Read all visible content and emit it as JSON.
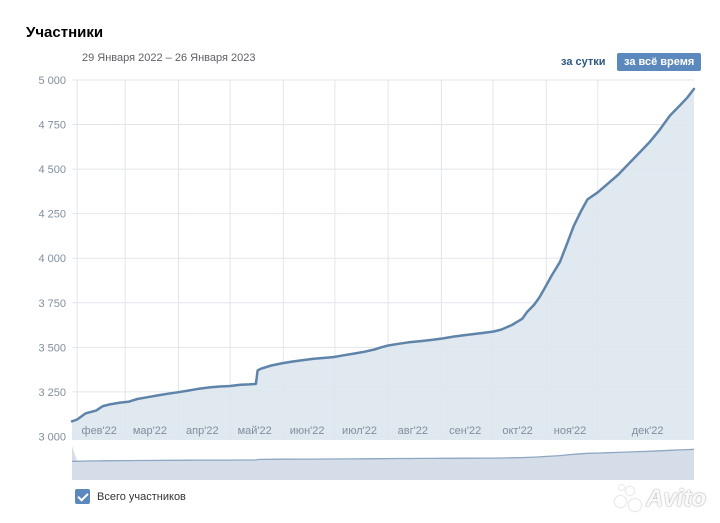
{
  "header": {
    "title": "Участники",
    "date_range": "29 Января 2022 – 26 Января 2023",
    "btn_day": "за сутки",
    "btn_all": "за всё время"
  },
  "legend": {
    "label": "Всего участников",
    "checked": true
  },
  "watermark": {
    "text": "Avito"
  },
  "colors": {
    "line": "#5f84aa",
    "fill": "#dde5ee",
    "accent": "#5b88bd",
    "grid": "#e2e6ec",
    "tick_label": "#7f8e9e"
  },
  "chart_data": {
    "type": "area",
    "title": "Участники",
    "xlabel": "",
    "ylabel": "",
    "ylim": [
      2980,
      5000
    ],
    "yticks": [
      3000,
      3250,
      3500,
      3750,
      4000,
      4250,
      4500,
      4750,
      5000
    ],
    "ytick_labels": [
      "3 000",
      "3 250",
      "3 500",
      "3 750",
      "4 000",
      "4 250",
      "4 500",
      "4 750",
      "5 000"
    ],
    "xlim": [
      0,
      362
    ],
    "month_starts": [
      3,
      31,
      62,
      92,
      123,
      153,
      184,
      215,
      245,
      276,
      306
    ],
    "month_labels": [
      "фев'22",
      "мар'22",
      "апр'22",
      "май'22",
      "июн'22",
      "июл'22",
      "авг'22",
      "сен'22",
      "окт'22",
      "ноя'22",
      "дек'22"
    ],
    "grid": true,
    "series": [
      {
        "name": "Всего участников",
        "x": [
          0,
          3,
          8,
          14,
          18,
          22,
          28,
          33,
          38,
          44,
          50,
          56,
          62,
          68,
          74,
          80,
          86,
          92,
          98,
          103,
          107,
          108,
          110,
          116,
          122,
          128,
          134,
          140,
          146,
          152,
          158,
          164,
          170,
          176,
          180,
          184,
          190,
          196,
          203,
          210,
          216,
          222,
          228,
          234,
          240,
          245,
          250,
          256,
          262,
          265,
          269,
          272,
          275,
          279,
          284,
          288,
          292,
          296,
          300,
          306,
          312,
          318,
          324,
          330,
          336,
          342,
          348,
          354,
          358,
          362
        ],
        "y": [
          3085,
          3095,
          3130,
          3145,
          3170,
          3180,
          3190,
          3195,
          3210,
          3220,
          3230,
          3240,
          3248,
          3258,
          3268,
          3275,
          3280,
          3283,
          3290,
          3292,
          3295,
          3370,
          3380,
          3398,
          3410,
          3420,
          3428,
          3435,
          3440,
          3445,
          3455,
          3465,
          3475,
          3488,
          3500,
          3510,
          3520,
          3528,
          3535,
          3542,
          3550,
          3560,
          3568,
          3575,
          3582,
          3588,
          3600,
          3625,
          3660,
          3700,
          3740,
          3780,
          3830,
          3900,
          3980,
          4080,
          4180,
          4260,
          4330,
          4370,
          4420,
          4470,
          4530,
          4590,
          4650,
          4720,
          4800,
          4860,
          4900,
          4950
        ]
      }
    ]
  }
}
